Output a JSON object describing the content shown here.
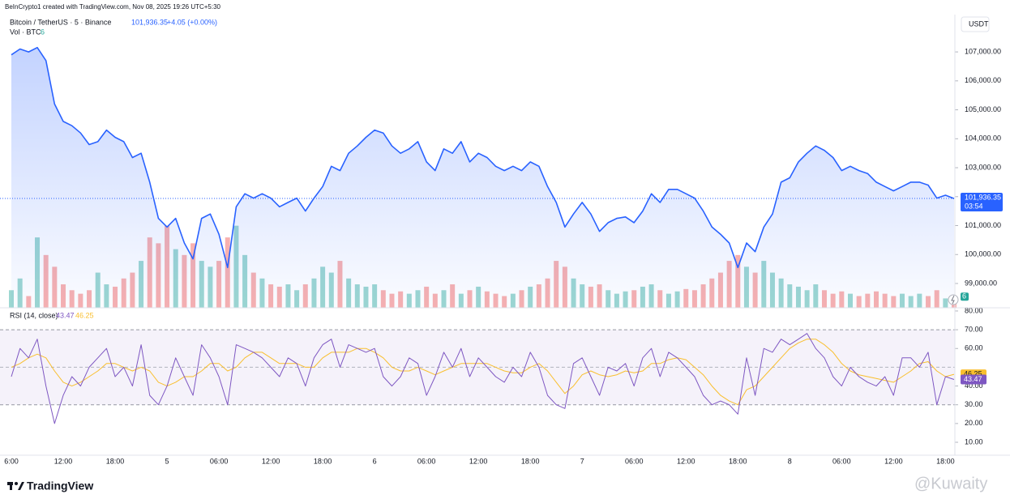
{
  "header": {
    "credit": "BeInCrypto1 created with TradingView.com, Nov 08, 2025 19:26 UTC+5:30"
  },
  "chart_data": [
    {
      "type": "line",
      "title": "Bitcoin / TetherUS · 5 · Binance",
      "last_label": "101,936.35",
      "change": "+4.05 (+0.00%)",
      "countdown": "03:54",
      "unit": "USDT",
      "color": "#2962ff",
      "categories": [
        "6:00",
        null,
        null,
        null,
        null,
        null,
        "12:00",
        null,
        null,
        null,
        null,
        null,
        "18:00",
        null,
        null,
        null,
        null,
        null,
        "5",
        null,
        null,
        null,
        null,
        null,
        "06:00",
        null,
        null,
        null,
        null,
        null,
        "12:00",
        null,
        null,
        null,
        null,
        null,
        "18:00",
        null,
        null,
        null,
        null,
        null,
        "6",
        null,
        null,
        null,
        null,
        null,
        "06:00",
        null,
        null,
        null,
        null,
        null,
        "12:00",
        null,
        null,
        null,
        null,
        null,
        "18:00",
        null,
        null,
        null,
        null,
        null,
        "7",
        null,
        null,
        null,
        null,
        null,
        "06:00",
        null,
        null,
        null,
        null,
        null,
        "12:00",
        null,
        null,
        null,
        null,
        null,
        "18:00",
        null,
        null,
        null,
        null,
        null,
        "8",
        null,
        null,
        null,
        null,
        null,
        "06:00",
        null,
        null,
        null,
        null,
        null,
        "12:00",
        null,
        null,
        null,
        null,
        null,
        "18:00",
        null
      ],
      "values": [
        106900,
        107100,
        107000,
        107150,
        106700,
        105200,
        104600,
        104450,
        104200,
        103800,
        103900,
        104300,
        104050,
        103900,
        103350,
        103500,
        102500,
        101250,
        100950,
        101250,
        100400,
        99850,
        101250,
        101400,
        100700,
        99550,
        101650,
        102100,
        101950,
        102100,
        101950,
        101650,
        101800,
        101950,
        101500,
        101950,
        102350,
        103050,
        102900,
        103500,
        103750,
        104050,
        104300,
        104200,
        103750,
        103500,
        103650,
        103900,
        103200,
        102900,
        103650,
        103500,
        103900,
        103200,
        103500,
        103350,
        103050,
        102900,
        103050,
        102900,
        103200,
        103050,
        102350,
        101800,
        100950,
        101400,
        101800,
        101400,
        100800,
        101100,
        101250,
        101300,
        101100,
        101500,
        102100,
        101800,
        102250,
        102250,
        102100,
        101950,
        101500,
        100950,
        100700,
        100400,
        99550,
        100400,
        100100,
        100950,
        101400,
        102500,
        102650,
        103200,
        103500,
        103750,
        103600,
        103350,
        102900,
        103050,
        102900,
        102800,
        102500,
        102350,
        102200,
        102350,
        102500,
        102500,
        102400,
        101950,
        102050,
        101936.35
      ],
      "ylim": [
        98160,
        108290
      ],
      "yticks": [
        {
          "value": 99000,
          "label": "99,000.00"
        },
        {
          "value": 100000,
          "label": "100,000.00"
        },
        {
          "value": 101000,
          "label": "101,000.00"
        },
        {
          "value": 102000,
          "label": "102,000.00"
        },
        {
          "value": 103000,
          "label": "103,000.00"
        },
        {
          "value": 104000,
          "label": "104,000.00"
        },
        {
          "value": 105000,
          "label": "105,000.00"
        },
        {
          "value": 106000,
          "label": "106,000.00"
        },
        {
          "value": 107000,
          "label": "107,000.00"
        }
      ],
      "grid": false
    },
    {
      "type": "bar",
      "title": "Vol · BTC",
      "up_color": "#26a69a",
      "down_color": "#ef5350",
      "values": [
        15,
        25,
        10,
        60,
        45,
        35,
        20,
        15,
        12,
        15,
        30,
        20,
        18,
        25,
        30,
        40,
        60,
        55,
        70,
        50,
        45,
        55,
        40,
        35,
        40,
        60,
        70,
        45,
        30,
        25,
        20,
        18,
        20,
        15,
        20,
        25,
        35,
        30,
        40,
        25,
        20,
        18,
        20,
        15,
        12,
        14,
        12,
        15,
        18,
        12,
        15,
        20,
        12,
        15,
        18,
        14,
        12,
        10,
        12,
        15,
        18,
        20,
        25,
        40,
        35,
        25,
        20,
        18,
        20,
        15,
        12,
        14,
        15,
        18,
        20,
        15,
        12,
        14,
        16,
        15,
        20,
        25,
        30,
        40,
        45,
        35,
        30,
        40,
        30,
        25,
        20,
        18,
        15,
        20,
        15,
        12,
        14,
        12,
        10,
        12,
        14,
        12,
        10,
        12,
        10,
        12,
        10,
        15,
        8,
        6
      ],
      "ylim": [
        0,
        250
      ]
    },
    {
      "type": "line",
      "title": "RSI (14, close)",
      "series": [
        {
          "color": "#7e57c2",
          "last_label": "43.47",
          "values": [
            45,
            60,
            55,
            65,
            40,
            20,
            35,
            45,
            40,
            50,
            55,
            60,
            45,
            50,
            40,
            62,
            35,
            30,
            40,
            55,
            45,
            35,
            62,
            55,
            45,
            30,
            62,
            60,
            58,
            55,
            50,
            45,
            55,
            52,
            40,
            55,
            62,
            65,
            50,
            62,
            60,
            58,
            60,
            45,
            40,
            45,
            55,
            52,
            35,
            45,
            58,
            50,
            60,
            45,
            55,
            50,
            45,
            42,
            50,
            45,
            58,
            50,
            35,
            30,
            28,
            52,
            55,
            45,
            35,
            50,
            48,
            52,
            40,
            55,
            60,
            45,
            58,
            55,
            50,
            45,
            35,
            30,
            32,
            30,
            25,
            55,
            35,
            60,
            58,
            65,
            62,
            65,
            68,
            60,
            55,
            45,
            40,
            50,
            45,
            42,
            40,
            45,
            35,
            55,
            55,
            50,
            58,
            30,
            45,
            43.47
          ]
        },
        {
          "color": "#f9bf2e",
          "last_label": "46.25",
          "values": [
            50,
            52,
            55,
            57,
            55,
            48,
            42,
            40,
            42,
            45,
            48,
            52,
            52,
            50,
            48,
            50,
            48,
            42,
            40,
            42,
            45,
            45,
            48,
            52,
            52,
            48,
            50,
            55,
            58,
            58,
            55,
            52,
            52,
            52,
            50,
            50,
            55,
            58,
            58,
            58,
            60,
            60,
            58,
            55,
            50,
            48,
            48,
            50,
            48,
            46,
            48,
            50,
            52,
            52,
            52,
            52,
            50,
            48,
            47,
            47,
            50,
            52,
            48,
            42,
            36,
            40,
            46,
            48,
            46,
            45,
            46,
            48,
            47,
            48,
            52,
            52,
            54,
            55,
            54,
            50,
            46,
            40,
            35,
            32,
            30,
            38,
            40,
            45,
            50,
            55,
            60,
            63,
            65,
            65,
            62,
            58,
            52,
            48,
            46,
            45,
            44,
            43,
            42,
            45,
            48,
            52,
            53,
            48,
            45,
            46.25
          ]
        }
      ],
      "ylim": [
        3.1,
        81.7
      ],
      "yticks": [
        {
          "value": 10,
          "label": "10.00"
        },
        {
          "value": 20,
          "label": "20.00"
        },
        {
          "value": 30,
          "label": "30.00"
        },
        {
          "value": 40,
          "label": "40.00"
        },
        {
          "value": 60,
          "label": "60.00"
        },
        {
          "value": 70,
          "label": "70.00"
        },
        {
          "value": 80,
          "label": "80.00"
        }
      ],
      "bands": [
        30,
        70
      ],
      "midline": 50,
      "band_color": "#7e57c2"
    }
  ],
  "footer": {
    "brand": "TradingView",
    "watermark": "@Kuwaity"
  }
}
